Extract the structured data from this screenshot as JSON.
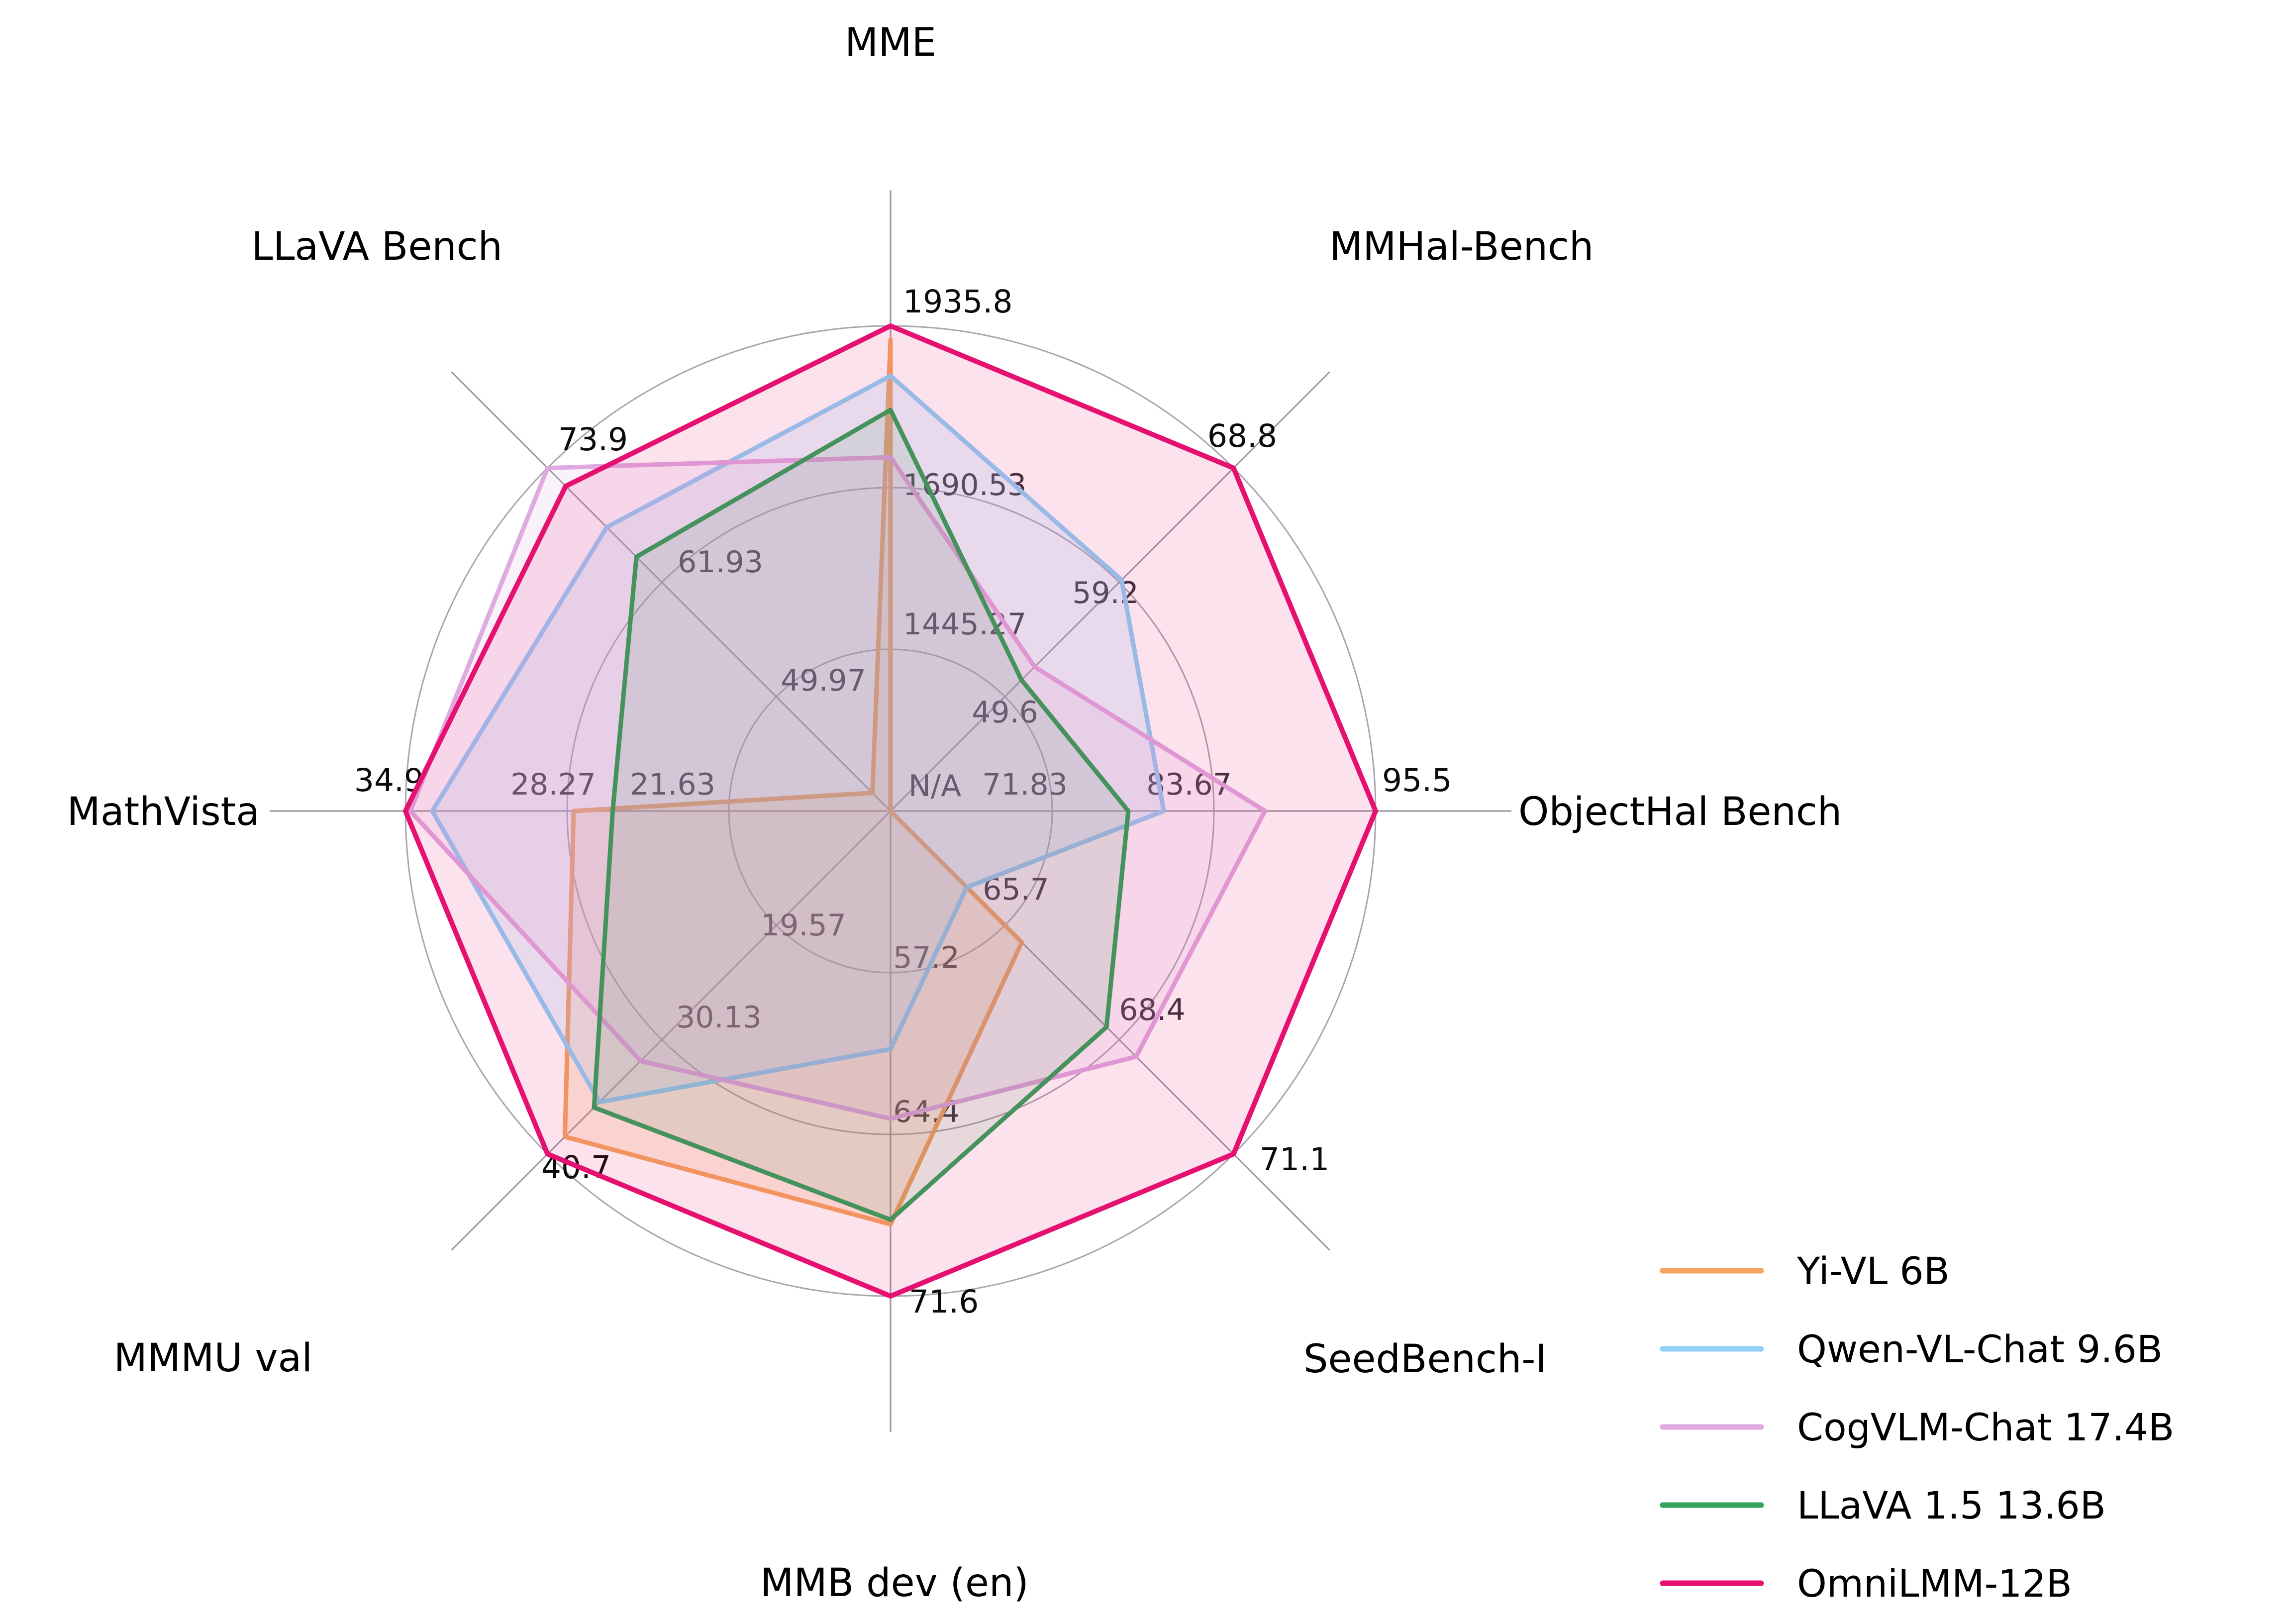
{
  "chart_data": {
    "type": "radar",
    "title": "",
    "grid": "on",
    "rings": 3,
    "grid_color": "#a9a6ae",
    "spoke_color": "#9e9aa2",
    "background_color": "#ffffff",
    "legend_position": "bottom-right",
    "na_label": "N/A",
    "axes": [
      {
        "label": "MME",
        "ticks": [
          "1445.27",
          "1690.53",
          "1935.8"
        ],
        "center_tick": "N/A",
        "range": [
          1200.01,
          1935.8
        ]
      },
      {
        "label": "MMHal-Bench",
        "ticks": [
          "49.6",
          "59.2",
          "68.8"
        ],
        "range": [
          40.0,
          68.8
        ]
      },
      {
        "label": "ObjectHal Bench",
        "ticks": [
          "71.83",
          "83.67",
          "95.5"
        ],
        "range": [
          60.0,
          95.5
        ]
      },
      {
        "label": "SeedBench-I",
        "ticks": [
          "65.7",
          "68.4",
          "71.1"
        ],
        "range": [
          63.0,
          71.1
        ]
      },
      {
        "label": "MMB dev (en)",
        "ticks": [
          "57.2",
          "64.4",
          "71.6"
        ],
        "range": [
          50.0,
          71.6
        ]
      },
      {
        "label": "MMMU val",
        "ticks": [
          "19.57",
          "30.13",
          "40.7"
        ],
        "range": [
          9.0,
          40.7
        ]
      },
      {
        "label": "MathVista",
        "ticks": [
          "21.63",
          "28.27",
          "34.9"
        ],
        "range": [
          15.0,
          34.9
        ]
      },
      {
        "label": "LLaVA Bench",
        "ticks": [
          "49.97",
          "61.93",
          "73.9"
        ],
        "range": [
          38.0,
          73.9
        ]
      }
    ],
    "series": [
      {
        "name": "Yi-VL 6B",
        "color": "#F5A55E",
        "values": [
          1915.1,
          null,
          null,
          66.1,
          68.4,
          39.1,
          28.0,
          39.9
        ]
      },
      {
        "name": "Qwen-VL-Chat 9.6B",
        "color": "#8FD1F8",
        "values": [
          1860.0,
          59.4,
          80.0,
          64.8,
          60.6,
          35.9,
          33.8,
          67.7
        ]
      },
      {
        "name": "CogVLM-Chat 17.4B",
        "color": "#DFA9E1",
        "values": [
          1736.6,
          52.1,
          87.4,
          68.8,
          63.7,
          32.1,
          34.7,
          73.9
        ]
      },
      {
        "name": "LLaVA 1.5 13.6B",
        "color": "#2FA45A",
        "values": [
          1808.4,
          51.0,
          77.4,
          68.1,
          68.2,
          36.4,
          26.4,
          64.6
        ]
      },
      {
        "name": "OmniLMM-12B",
        "color": "#E5106F",
        "values": [
          1935.8,
          68.8,
          95.5,
          71.1,
          71.6,
          40.7,
          34.9,
          72.0
        ]
      }
    ]
  }
}
